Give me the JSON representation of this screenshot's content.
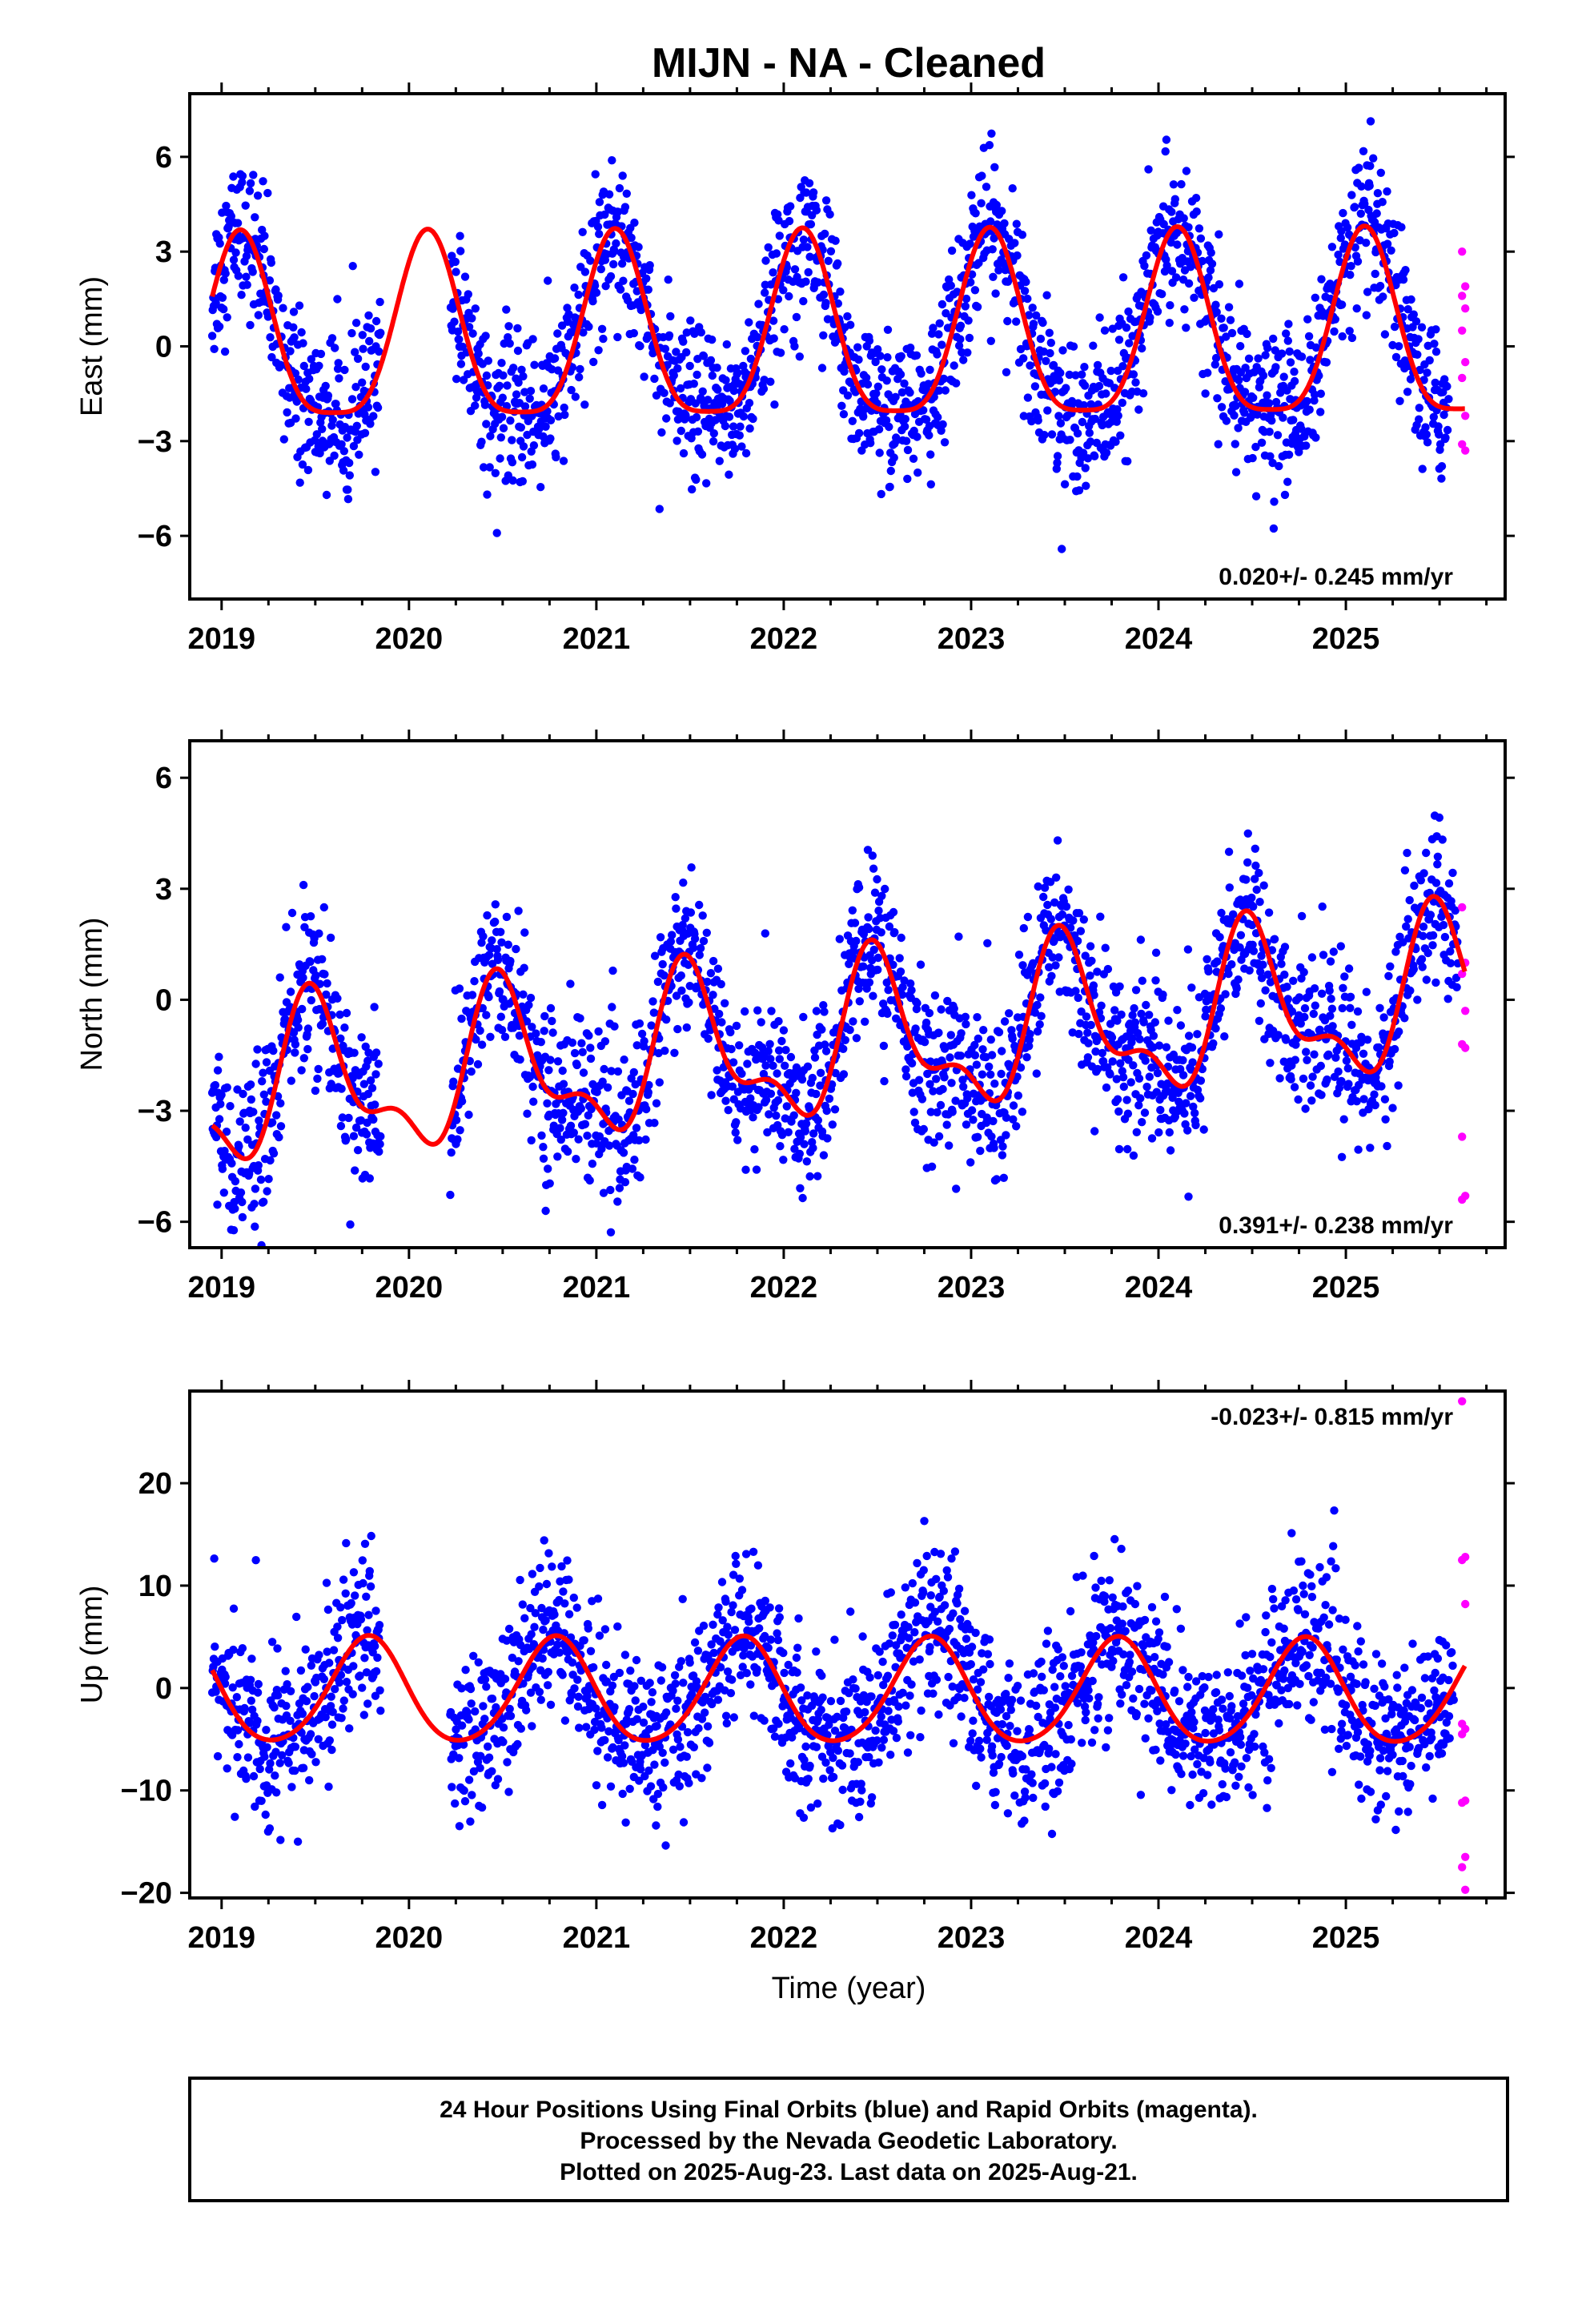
{
  "title": "MIJN  - NA - Cleaned",
  "xlabel": "Time (year)",
  "caption": [
    "24 Hour Positions Using Final Orbits (blue) and Rapid Orbits (magenta).",
    "Processed by the Nevada Geodetic Laboratory.",
    "Plotted on 2025-Aug-23. Last data on 2025-Aug-21."
  ],
  "colors": {
    "final": "#0000ff",
    "rapid": "#ff00ff",
    "model": "#ff0000",
    "frame": "#000000"
  },
  "chart_data": [
    {
      "type": "scatter",
      "ylabel": "East (mm)",
      "rate": "0.020+/- 0.245 mm/yr",
      "xlim": [
        2018.83,
        2025.85
      ],
      "ylim": [
        -8,
        8
      ],
      "yticks": [
        -6,
        -3,
        0,
        3,
        6
      ],
      "xticks": [
        2019,
        2020,
        2021,
        2022,
        2023,
        2024,
        2025
      ],
      "model": {
        "offset": 0.15,
        "rate": 0.02,
        "annual_amp": 2.9,
        "annual_phase_year": 0.1,
        "semiannual_amp": 0.7,
        "semiannual_phase_year": 0.1
      },
      "final_noise_mm": 1.2,
      "final_x_range": [
        2018.95,
        2025.55
      ],
      "rapid_x": 2025.62,
      "rapid_y": [
        3.0,
        1.9,
        1.6,
        1.2,
        0.5,
        -0.5,
        -1.0,
        -2.2,
        -3.1,
        -3.3
      ],
      "series": [
        {
          "name": "Final Orbits"
        },
        {
          "name": "Rapid Orbits"
        }
      ]
    },
    {
      "type": "scatter",
      "ylabel": "North (mm)",
      "rate": "0.391+/- 0.238 mm/yr",
      "xlim": [
        2018.83,
        2025.85
      ],
      "ylim": [
        -6.7,
        7
      ],
      "yticks": [
        -6,
        -3,
        0,
        3,
        6
      ],
      "xticks": [
        2019,
        2020,
        2021,
        2022,
        2023,
        2024,
        2025
      ],
      "model": {
        "offset": -1.3,
        "rate": 0.391,
        "annual_amp": 1.9,
        "annual_phase_year": 0.5,
        "semiannual_amp": 0.9,
        "semiannual_phase_year": 0.45
      },
      "final_noise_mm": 1.1,
      "final_x_range": [
        2018.95,
        2025.6
      ],
      "rapid_x": 2025.62,
      "rapid_y": [
        2.5,
        1.0,
        0.7,
        -0.3,
        -1.2,
        -1.3,
        -3.7,
        -5.3,
        -5.4
      ],
      "series": [
        {
          "name": "Final Orbits"
        },
        {
          "name": "Rapid Orbits"
        }
      ]
    },
    {
      "type": "scatter",
      "ylabel": "Up (mm)",
      "rate": "-0.023+/- 0.815 mm/yr",
      "xlim": [
        2018.83,
        2025.85
      ],
      "ylim": [
        -20.5,
        29
      ],
      "yticks": [
        -20,
        -10,
        0,
        10,
        20
      ],
      "xticks": [
        2019,
        2020,
        2021,
        2022,
        2023,
        2024,
        2025
      ],
      "model": {
        "offset": -0.6,
        "rate": -0.023,
        "annual_amp": 5.1,
        "annual_phase_year": 0.78,
        "semiannual_amp": 0.6,
        "semiannual_phase_year": 0.3
      },
      "final_noise_mm": 4.0,
      "final_x_range": [
        2018.95,
        2025.58
      ],
      "rapid_x": 2025.62,
      "rapid_y": [
        28,
        12.8,
        12.5,
        8.2,
        -3.5,
        -4.0,
        -4.5,
        -11.0,
        -11.2,
        -16.5,
        -17.5,
        -19.7
      ],
      "series": [
        {
          "name": "Final Orbits"
        },
        {
          "name": "Rapid Orbits"
        }
      ]
    }
  ]
}
